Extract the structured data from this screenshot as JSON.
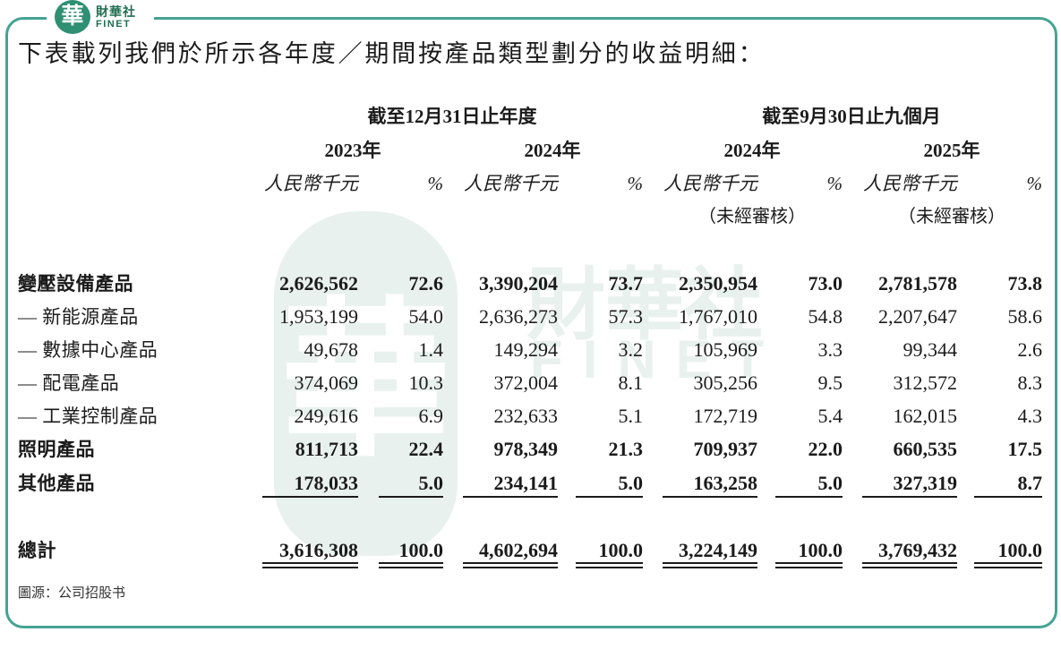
{
  "brand": {
    "logo_char": "華",
    "name_zh": "財華社",
    "name_en": "FINET",
    "accent_color": "#2f8f72",
    "frame_color": "#46a393"
  },
  "watermark": {
    "logo_char": "華",
    "name_zh": "財華社",
    "name_en": "FINET"
  },
  "title": "下表載列我們於所示各年度／期間按產品類型劃分的收益明細：",
  "table": {
    "period_headers": [
      "截至12月31日止年度",
      "截至9月30日止九個月"
    ],
    "years": [
      "2023年",
      "2024年",
      "2024年",
      "2025年"
    ],
    "units": {
      "amount": "人民幣千元",
      "percent": "%"
    },
    "unaudited": "（未經審核）",
    "rows": [
      {
        "label": "變壓設備產品",
        "values": [
          "2,626,562",
          "72.6",
          "3,390,204",
          "73.7",
          "2,350,954",
          "73.0",
          "2,781,578",
          "73.8"
        ]
      },
      {
        "label": "— 新能源產品",
        "values": [
          "1,953,199",
          "54.0",
          "2,636,273",
          "57.3",
          "1,767,010",
          "54.8",
          "2,207,647",
          "58.6"
        ]
      },
      {
        "label": "— 數據中心產品",
        "values": [
          "49,678",
          "1.4",
          "149,294",
          "3.2",
          "105,969",
          "3.3",
          "99,344",
          "2.6"
        ]
      },
      {
        "label": "— 配電產品",
        "values": [
          "374,069",
          "10.3",
          "372,004",
          "8.1",
          "305,256",
          "9.5",
          "312,572",
          "8.3"
        ]
      },
      {
        "label": "— 工業控制產品",
        "values": [
          "249,616",
          "6.9",
          "232,633",
          "5.1",
          "172,719",
          "5.4",
          "162,015",
          "4.3"
        ]
      },
      {
        "label": "照明產品",
        "values": [
          "811,713",
          "22.4",
          "978,349",
          "21.3",
          "709,937",
          "22.0",
          "660,535",
          "17.5"
        ]
      },
      {
        "label": "其他產品",
        "values": [
          "178,033",
          "5.0",
          "234,141",
          "5.0",
          "163,258",
          "5.0",
          "327,319",
          "8.7"
        ]
      },
      {
        "label": "總計",
        "values": [
          "3,616,308",
          "100.0",
          "4,602,694",
          "100.0",
          "3,224,149",
          "100.0",
          "3,769,432",
          "100.0"
        ]
      }
    ]
  },
  "source": "圖源：公司招股书"
}
